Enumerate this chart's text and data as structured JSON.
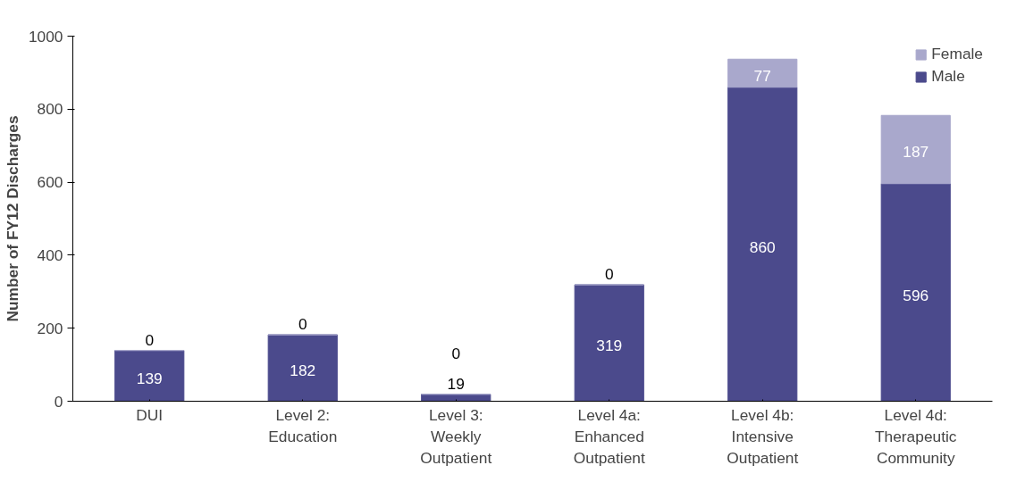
{
  "chart_data": {
    "type": "bar",
    "stacked": true,
    "ylabel": "Number of FY12 Discharges",
    "categories": [
      "DUI",
      "Level 2:\nEducation",
      "Level 3:\nWeekly\nOutpatient",
      "Level 4a:\nEnhanced\nOutpatient",
      "Level 4b:\nIntensive\nOutpatient",
      "Level 4d:\nTherapeutic\nCommunity"
    ],
    "series": [
      {
        "name": "Male",
        "color": "#4b4a8c",
        "values": [
          139,
          182,
          19,
          319,
          860,
          596
        ]
      },
      {
        "name": "Female",
        "color": "#a9a8cc",
        "values": [
          0,
          0,
          0,
          0,
          77,
          187
        ]
      }
    ],
    "ylim": [
      0,
      1000
    ],
    "yticks": [
      0,
      200,
      400,
      600,
      800,
      1000
    ],
    "data_labels": true,
    "legend": "top right"
  }
}
